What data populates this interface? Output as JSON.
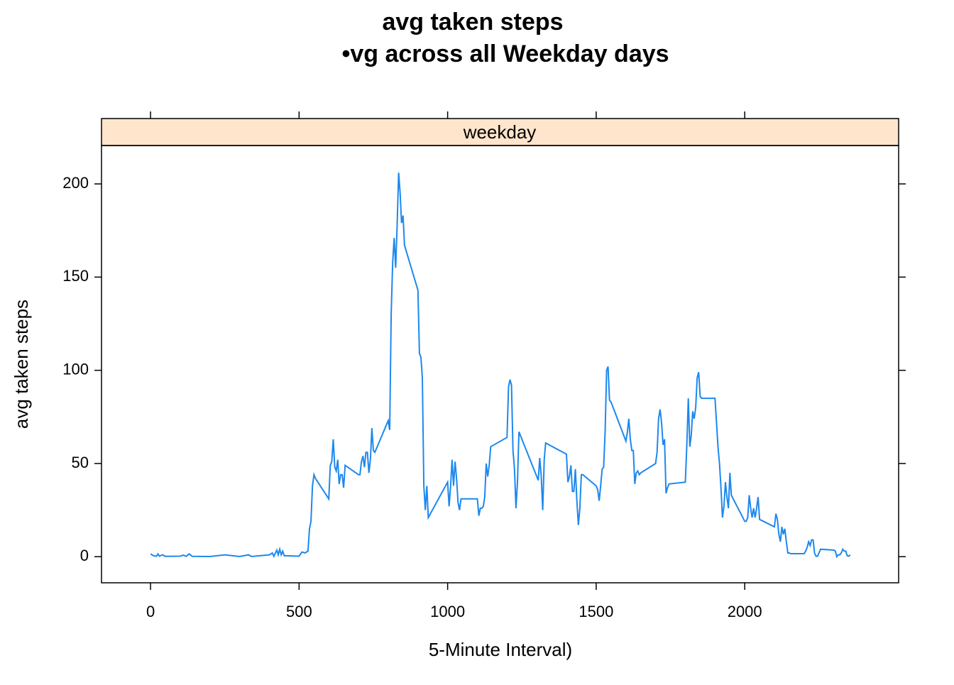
{
  "chart_data": {
    "type": "line",
    "title": "avg taken steps",
    "subtitle": "•vg across all Weekday days",
    "strip": "weekday",
    "x_label": "5-Minute Interval)",
    "y_label": "avg taken steps",
    "xlim": [
      -165,
      2518
    ],
    "ylim": [
      -14,
      220.6
    ],
    "xticks": [
      0,
      500,
      1000,
      1500,
      2000
    ],
    "yticks": [
      0,
      50,
      100,
      150,
      200
    ],
    "series": [
      {
        "name": "weekday",
        "color": "#1e88ee",
        "x": [
          0,
          10,
          20,
          25,
          30,
          40,
          50,
          100,
          110,
          120,
          130,
          140,
          200,
          250,
          300,
          330,
          340,
          400,
          410,
          415,
          425,
          430,
          435,
          440,
          445,
          450,
          500,
          510,
          520,
          530,
          535,
          540,
          545,
          550,
          555,
          600,
          605,
          610,
          615,
          620,
          625,
          630,
          635,
          640,
          645,
          650,
          655,
          700,
          705,
          710,
          715,
          720,
          725,
          730,
          735,
          740,
          745,
          750,
          755,
          800,
          805,
          810,
          815,
          820,
          825,
          830,
          835,
          840,
          845,
          850,
          855,
          900,
          905,
          910,
          915,
          920,
          925,
          930,
          935,
          1000,
          1005,
          1010,
          1015,
          1020,
          1025,
          1030,
          1035,
          1040,
          1045,
          1050,
          1055,
          1100,
          1105,
          1110,
          1115,
          1120,
          1125,
          1130,
          1135,
          1140,
          1145,
          1200,
          1205,
          1210,
          1215,
          1220,
          1225,
          1230,
          1235,
          1240,
          1300,
          1305,
          1310,
          1315,
          1320,
          1325,
          1330,
          1400,
          1405,
          1410,
          1415,
          1420,
          1425,
          1430,
          1435,
          1440,
          1445,
          1450,
          1455,
          1500,
          1505,
          1510,
          1515,
          1520,
          1525,
          1530,
          1535,
          1540,
          1545,
          1550,
          1600,
          1605,
          1610,
          1615,
          1620,
          1625,
          1630,
          1635,
          1640,
          1645,
          1650,
          1700,
          1705,
          1710,
          1715,
          1720,
          1725,
          1730,
          1735,
          1740,
          1745,
          1800,
          1805,
          1810,
          1815,
          1820,
          1825,
          1830,
          1835,
          1840,
          1845,
          1850,
          1855,
          1900,
          1905,
          1910,
          1915,
          1920,
          1925,
          1930,
          1935,
          1940,
          1945,
          1950,
          1955,
          2000,
          2005,
          2010,
          2015,
          2020,
          2025,
          2030,
          2035,
          2040,
          2045,
          2050,
          2100,
          2105,
          2110,
          2115,
          2120,
          2125,
          2130,
          2135,
          2140,
          2145,
          2150,
          2155,
          2200,
          2205,
          2210,
          2215,
          2220,
          2225,
          2230,
          2235,
          2240,
          2245,
          2250,
          2255,
          2300,
          2305,
          2310,
          2315,
          2320,
          2325,
          2330,
          2335,
          2340,
          2345,
          2350,
          2355
        ],
        "values": [
          1.5,
          0.5,
          0.2,
          1.5,
          0.3,
          1,
          0.2,
          0.3,
          0.8,
          0.2,
          1.5,
          0.2,
          0.1,
          1,
          0.1,
          1,
          0.1,
          1,
          2,
          0.2,
          3.5,
          1,
          4,
          1,
          3,
          0.5,
          0.3,
          2.5,
          2,
          3,
          15,
          19,
          38,
          44,
          42,
          31,
          49,
          51,
          63,
          48,
          46,
          52,
          39,
          44,
          44,
          37,
          49,
          44,
          44,
          51,
          54,
          48,
          56,
          56,
          45,
          52,
          69,
          57,
          56,
          73,
          68,
          130,
          158,
          171,
          155,
          178,
          206,
          195,
          179,
          183,
          167,
          143,
          109,
          107,
          96,
          38,
          25,
          38,
          21,
          40,
          27,
          38,
          52,
          38,
          51,
          42,
          29,
          25,
          31,
          31,
          31,
          31,
          22,
          26,
          26,
          27,
          32,
          50,
          43,
          49,
          59,
          64,
          91,
          95,
          92,
          57,
          47,
          26,
          40,
          67,
          43,
          41,
          53,
          43,
          25,
          52,
          61,
          55,
          40,
          43,
          49,
          35,
          35,
          47,
          30,
          17,
          26,
          44,
          44,
          38,
          36,
          30,
          38,
          47,
          48,
          67,
          100,
          102,
          84,
          83,
          62,
          67,
          74,
          63,
          57,
          57,
          39,
          45,
          46,
          44,
          45,
          50,
          56,
          74,
          79,
          72,
          60,
          63,
          34,
          37,
          39,
          40,
          60,
          85,
          59,
          65,
          78,
          74,
          80,
          96,
          99,
          86,
          85,
          85,
          72,
          59,
          50,
          37,
          21,
          27,
          40,
          32,
          26,
          45,
          33,
          19,
          19,
          21,
          33,
          26,
          21,
          26,
          21,
          26,
          32,
          20,
          16,
          23,
          20,
          12,
          8,
          16,
          12,
          15,
          8,
          2,
          2,
          1.6,
          1.6,
          3,
          5,
          8,
          6,
          9,
          9,
          2,
          0.3,
          0.2,
          2,
          4,
          3.5,
          3,
          0,
          1,
          1,
          2,
          4,
          3,
          3,
          0.5,
          0.3,
          1
        ]
      }
    ]
  }
}
